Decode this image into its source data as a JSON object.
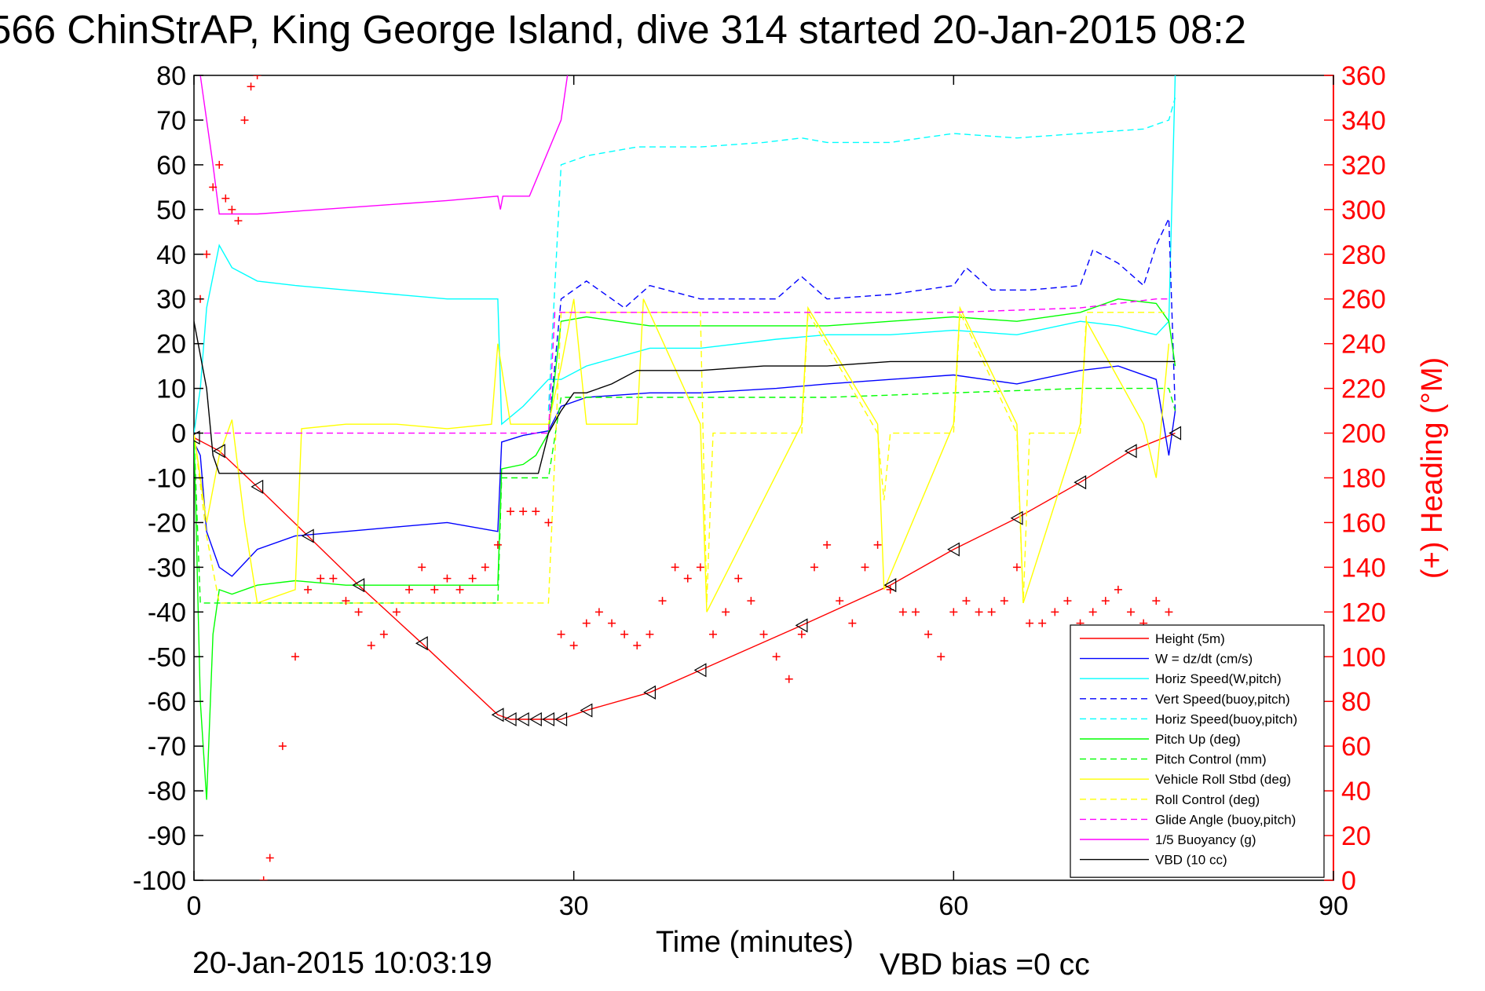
{
  "title": "566 ChinStrAP, King George Island, dive 314 started 20-Jan-2015 08:2",
  "footer": {
    "date": "20-Jan-2015 10:03:19",
    "vbd_bias": "VBD bias =0 cc"
  },
  "chart_data": {
    "type": "line",
    "title": "566 ChinStrAP, King George Island, dive 314 started 20-Jan-2015 08:2",
    "xlabel": "Time (minutes)",
    "ylabel": "",
    "ylabel_right": "(+) Heading (°M)",
    "xlim": [
      0,
      90
    ],
    "ylim": [
      -100,
      80
    ],
    "ylim_right": [
      0,
      360
    ],
    "xticks": [
      "0",
      "30",
      "60",
      "90"
    ],
    "yticks_left": [
      "80",
      "70",
      "60",
      "50",
      "40",
      "30",
      "20",
      "10",
      "0",
      "-10",
      "-20",
      "-30",
      "-40",
      "-50",
      "-60",
      "-70",
      "-80",
      "-90",
      "-100"
    ],
    "yticks_right": [
      "360",
      "340",
      "320",
      "300",
      "280",
      "260",
      "240",
      "220",
      "200",
      "180",
      "160",
      "140",
      "120",
      "100",
      "80",
      "60",
      "40",
      "20",
      "0"
    ],
    "grid": false,
    "legend_position": "bottom-right",
    "colors": {
      "height": "#ff0000",
      "w": "#0000ff",
      "horiz_w": "#00ffff",
      "vert_buoy": "#0000ff",
      "horiz_buoy": "#00ffff",
      "pitch_up": "#00ff00",
      "pitch_ctrl": "#00ff00",
      "roll": "#ffff00",
      "roll_ctrl": "#ffff00",
      "glide": "#ff00ff",
      "buoy": "#ff00ff",
      "vbd": "#000000",
      "heading": "#ff0000"
    },
    "series": [
      {
        "name": "Height (5m)",
        "color": "#ff0000",
        "style": "solid",
        "x": [
          0,
          2,
          5,
          9,
          13,
          18,
          24,
          25,
          26,
          27,
          28,
          29,
          31,
          36,
          40,
          48,
          55,
          60,
          65,
          70,
          74,
          77.5
        ],
        "y": [
          -1,
          -4,
          -12,
          -23,
          -34,
          -47,
          -63,
          -64,
          -64,
          -64,
          -64,
          -64,
          -62,
          -58,
          -53,
          -43,
          -34,
          -26,
          -19,
          -11,
          -4,
          0
        ]
      },
      {
        "name": "W = dz/dt (cm/s)",
        "color": "#0000ff",
        "style": "solid",
        "x": [
          0,
          0.5,
          1,
          2,
          3,
          5,
          8,
          12,
          16,
          20,
          24,
          24.3,
          26,
          28,
          29,
          31,
          36,
          40,
          46,
          50,
          55,
          60,
          65,
          70,
          73,
          76,
          77,
          77.5
        ],
        "y": [
          -2,
          -5,
          -22,
          -30,
          -32,
          -26,
          -23,
          -22,
          -21,
          -20,
          -22,
          -2,
          -0.5,
          0.5,
          6,
          8,
          9,
          9,
          10,
          11,
          12,
          13,
          11,
          14,
          15,
          12,
          -5,
          5
        ]
      },
      {
        "name": "Horiz Speed(W,pitch)",
        "color": "#00ffff",
        "style": "solid",
        "x": [
          0,
          0.5,
          1,
          2,
          3,
          5,
          8,
          12,
          16,
          20,
          24,
          24.3,
          26,
          28,
          29,
          31,
          36,
          40,
          46,
          50,
          55,
          60,
          65,
          70,
          73,
          76,
          77,
          77.5
        ],
        "y": [
          0,
          10,
          28,
          42,
          37,
          34,
          33,
          32,
          31,
          30,
          30,
          2,
          6,
          12,
          12,
          15,
          19,
          19,
          21,
          22,
          22,
          23,
          22,
          25,
          24,
          22,
          25,
          80
        ]
      },
      {
        "name": "Vert Speed(buoy,pitch)",
        "color": "#0000ff",
        "style": "dashed",
        "x": [
          28,
          29,
          31,
          34,
          36,
          40,
          46,
          48,
          50,
          55,
          60,
          61,
          63,
          66,
          70,
          71,
          73,
          75,
          76,
          77,
          77.5
        ],
        "y": [
          0,
          30,
          34,
          28,
          33,
          30,
          30,
          35,
          30,
          31,
          33,
          37,
          32,
          32,
          33,
          41,
          38,
          33,
          42,
          48,
          5
        ]
      },
      {
        "name": "Horiz Speed(buoy,pitch)",
        "color": "#00ffff",
        "style": "dashed",
        "x": [
          28,
          29,
          31,
          35,
          40,
          45,
          48,
          50,
          55,
          60,
          65,
          70,
          75,
          77,
          77.5
        ],
        "y": [
          5,
          60,
          62,
          64,
          64,
          65,
          66,
          65,
          65,
          67,
          66,
          67,
          68,
          70,
          75
        ]
      },
      {
        "name": "Pitch Up (deg)",
        "color": "#00ff00",
        "style": "solid",
        "x": [
          0,
          0.5,
          1,
          1.5,
          2,
          3,
          5,
          8,
          12,
          16,
          20,
          24,
          24.3,
          26,
          27,
          28,
          29,
          31,
          36,
          40,
          46,
          50,
          55,
          60,
          65,
          70,
          73,
          76,
          77,
          77.5
        ],
        "y": [
          0,
          -60,
          -82,
          -45,
          -35,
          -36,
          -34,
          -33,
          -34,
          -34,
          -34,
          -34,
          -8,
          -7,
          -5,
          0,
          25,
          26,
          24,
          24,
          24,
          24,
          25,
          26,
          25,
          27,
          30,
          29,
          25,
          15
        ]
      },
      {
        "name": "Pitch Control (mm)",
        "color": "#00ff00",
        "style": "dashed",
        "x": [
          0,
          0.5,
          1,
          2,
          8,
          24,
          24.3,
          28,
          29,
          31,
          40,
          50,
          60,
          70,
          77,
          77.5
        ],
        "y": [
          0,
          -38,
          -38,
          -38,
          -38,
          -38,
          -10,
          -10,
          8,
          8,
          8,
          8,
          9,
          10,
          10,
          5
        ]
      },
      {
        "name": "Vehicle Roll Stbd (deg)",
        "color": "#ffff00",
        "style": "solid",
        "x": [
          0,
          1,
          2,
          3,
          4,
          5,
          8,
          8.5,
          12,
          16,
          20,
          23.5,
          24,
          25,
          28,
          29,
          30,
          31,
          35,
          35.5,
          40,
          40.5,
          48,
          48.5,
          54,
          54.5,
          60,
          60.5,
          65,
          65.5,
          70,
          70.5,
          75,
          76,
          77
        ],
        "y": [
          0,
          -20,
          -5,
          3,
          -20,
          -38,
          -35,
          1,
          2,
          2,
          1,
          2,
          20,
          2,
          2,
          15,
          30,
          2,
          2,
          30,
          2,
          -40,
          2,
          28,
          2,
          -35,
          2,
          28,
          2,
          -38,
          2,
          25,
          2,
          -10,
          20
        ]
      },
      {
        "name": "Roll Control (deg)",
        "color": "#ffff00",
        "style": "dashed",
        "x": [
          0,
          1,
          2,
          4,
          5,
          9,
          24,
          28,
          29,
          31,
          35,
          35.5,
          40,
          40.5,
          41,
          48,
          48.5,
          54,
          54.5,
          55,
          60,
          60.5,
          65,
          65.5,
          66,
          70,
          70.5,
          75,
          77
        ],
        "y": [
          0,
          -23,
          -38,
          -38,
          -38,
          -38,
          -38,
          -38,
          27,
          27,
          27,
          27,
          27,
          -38,
          0,
          0,
          27,
          0,
          -15,
          0,
          0,
          27,
          0,
          -38,
          0,
          0,
          27,
          27,
          27
        ]
      },
      {
        "name": "Glide Angle (buoy,pitch)",
        "color": "#ff00ff",
        "style": "dashed",
        "x": [
          0,
          28,
          28.5,
          31,
          40,
          50,
          60,
          70,
          76,
          77
        ],
        "y": [
          0,
          0,
          27,
          27,
          27,
          27,
          27,
          28,
          30,
          30
        ]
      },
      {
        "name": "1/5 Buoyancy (g)",
        "color": "#ff00ff",
        "style": "solid",
        "x": [
          0.5,
          1,
          1.5,
          2,
          5,
          10,
          20,
          24,
          24.2,
          24.4,
          26.5,
          29,
          29.5
        ],
        "y": [
          80,
          70,
          60,
          49,
          49,
          50,
          52,
          53,
          50,
          53,
          53,
          70,
          80
        ]
      },
      {
        "name": "VBD (10 cc)",
        "color": "#000000",
        "style": "solid",
        "x": [
          0,
          1,
          1.5,
          2,
          5,
          10,
          20,
          27,
          27.2,
          28,
          29,
          30,
          31,
          33,
          35,
          40,
          45,
          50,
          55,
          60,
          65,
          70,
          77.5
        ],
        "y": [
          25,
          10,
          -5,
          -9,
          -9,
          -9,
          -9,
          -9,
          -9,
          0,
          5,
          9,
          9,
          11,
          14,
          14,
          15,
          15,
          16,
          16,
          16,
          16,
          16
        ]
      },
      {
        "name": "Heading",
        "color": "#ff0000",
        "style": "plus",
        "axis": "right",
        "x": [
          0.5,
          1,
          1.5,
          2,
          2.5,
          3,
          3.5,
          4,
          4.5,
          5,
          5.5,
          6,
          7,
          8,
          9,
          10,
          11,
          12,
          13,
          14,
          15,
          16,
          17,
          18,
          19,
          20,
          21,
          22,
          23,
          24,
          25,
          26,
          27,
          28,
          29,
          30,
          31,
          32,
          33,
          34,
          35,
          36,
          37,
          38,
          39,
          40,
          41,
          42,
          43,
          44,
          45,
          46,
          47,
          48,
          49,
          50,
          51,
          52,
          53,
          54,
          55,
          56,
          57,
          58,
          59,
          60,
          61,
          62,
          63,
          64,
          65,
          66,
          67,
          68,
          69,
          70,
          71,
          72,
          73,
          74,
          75,
          76,
          77
        ],
        "y": [
          260,
          280,
          310,
          320,
          305,
          300,
          295,
          340,
          355,
          360,
          0,
          10,
          60,
          100,
          130,
          135,
          135,
          125,
          120,
          105,
          110,
          120,
          130,
          140,
          130,
          135,
          130,
          135,
          140,
          150,
          165,
          165,
          165,
          160,
          110,
          105,
          115,
          120,
          115,
          110,
          105,
          110,
          125,
          140,
          135,
          140,
          110,
          120,
          135,
          125,
          110,
          100,
          90,
          110,
          140,
          150,
          125,
          115,
          140,
          150,
          130,
          120,
          120,
          110,
          100,
          120,
          125,
          120,
          120,
          125,
          140,
          115,
          115,
          120,
          125,
          115,
          120,
          125,
          130,
          120,
          115,
          125,
          120
        ]
      }
    ]
  }
}
